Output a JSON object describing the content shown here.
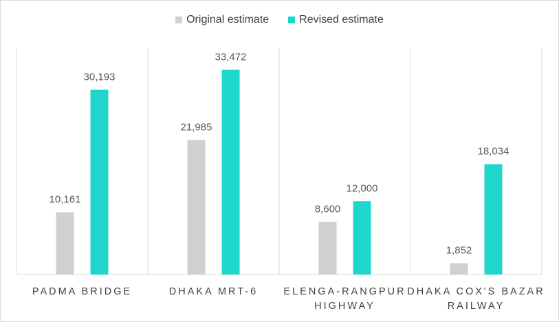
{
  "chart_data": {
    "type": "bar",
    "categories": [
      [
        "PADMA BRIDGE"
      ],
      [
        "DHAKA MRT-6"
      ],
      [
        "ELENGA-RANGPUR",
        "HIGHWAY"
      ],
      [
        "DHAKA COX'S BAZAR",
        "RAILWAY"
      ]
    ],
    "series": [
      {
        "name": "Original estimate",
        "color": "#d0d0d0",
        "values": [
          10161,
          21985,
          8600,
          1852
        ],
        "labels": [
          "10,161",
          "21,985",
          "8,600",
          "1,852"
        ]
      },
      {
        "name": "Revised estimate",
        "color": "#1fd6cc",
        "values": [
          30193,
          33472,
          12000,
          18034
        ],
        "labels": [
          "30,193",
          "33,472",
          "12,000",
          "18,034"
        ]
      }
    ],
    "title": "",
    "xlabel": "",
    "ylabel": "",
    "ylim": [
      0,
      37000
    ],
    "grid": false,
    "legend": "top-center"
  }
}
